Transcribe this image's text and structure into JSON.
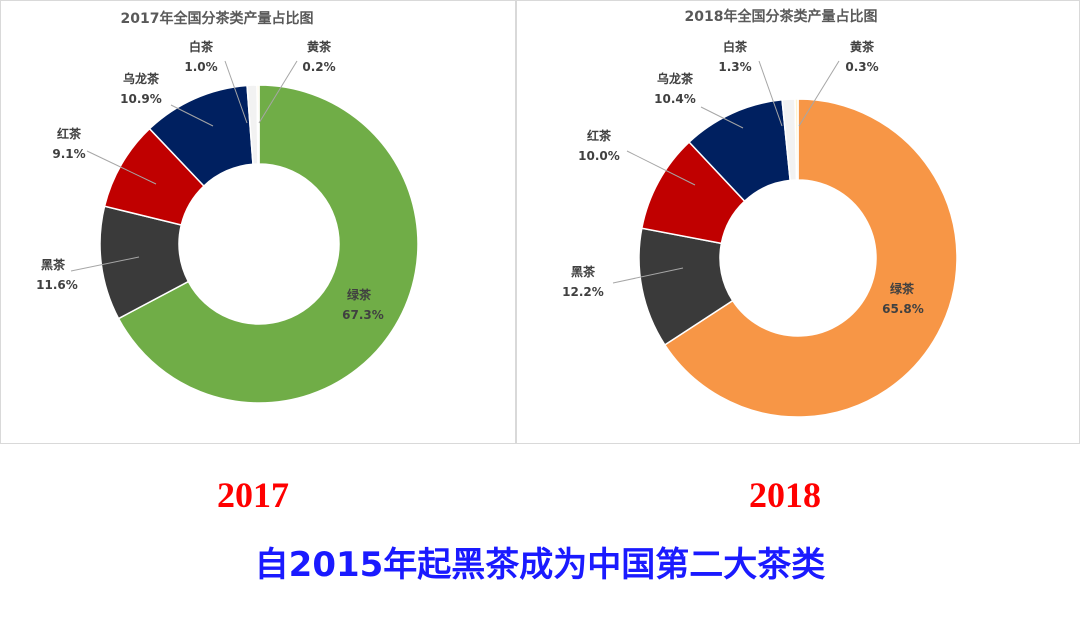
{
  "chart_data": [
    {
      "type": "pie",
      "title": "2017年全国分茶类产量占比图",
      "categories": [
        "绿茶",
        "黑茶",
        "红茶",
        "乌龙茶",
        "白茶",
        "黄茶"
      ],
      "values": [
        67.3,
        11.6,
        9.1,
        10.9,
        1.0,
        0.2
      ],
      "value_labels": [
        "67.3%",
        "11.6%",
        "9.1%",
        "10.9%",
        "1.0%",
        "0.2%"
      ],
      "colors": [
        "#70ad47",
        "#3a3a3a",
        "#c00000",
        "#002060",
        "#f2f2f2",
        "#fff2cc"
      ],
      "donut": true
    },
    {
      "type": "pie",
      "title": "2018年全国分茶类产量占比图",
      "categories": [
        "绿茶",
        "黑茶",
        "红茶",
        "乌龙茶",
        "白茶",
        "黄茶"
      ],
      "values": [
        65.8,
        12.2,
        10.0,
        10.4,
        1.3,
        0.3
      ],
      "value_labels": [
        "65.8%",
        "12.2%",
        "10.0%",
        "10.4%",
        "1.3%",
        "0.3%"
      ],
      "colors": [
        "#f79646",
        "#3a3a3a",
        "#c00000",
        "#002060",
        "#f2f2f2",
        "#fff2cc"
      ],
      "donut": true
    }
  ],
  "years": {
    "left": "2017",
    "right": "2018"
  },
  "caption": "自2015年起黑茶成为中国第二大茶类"
}
